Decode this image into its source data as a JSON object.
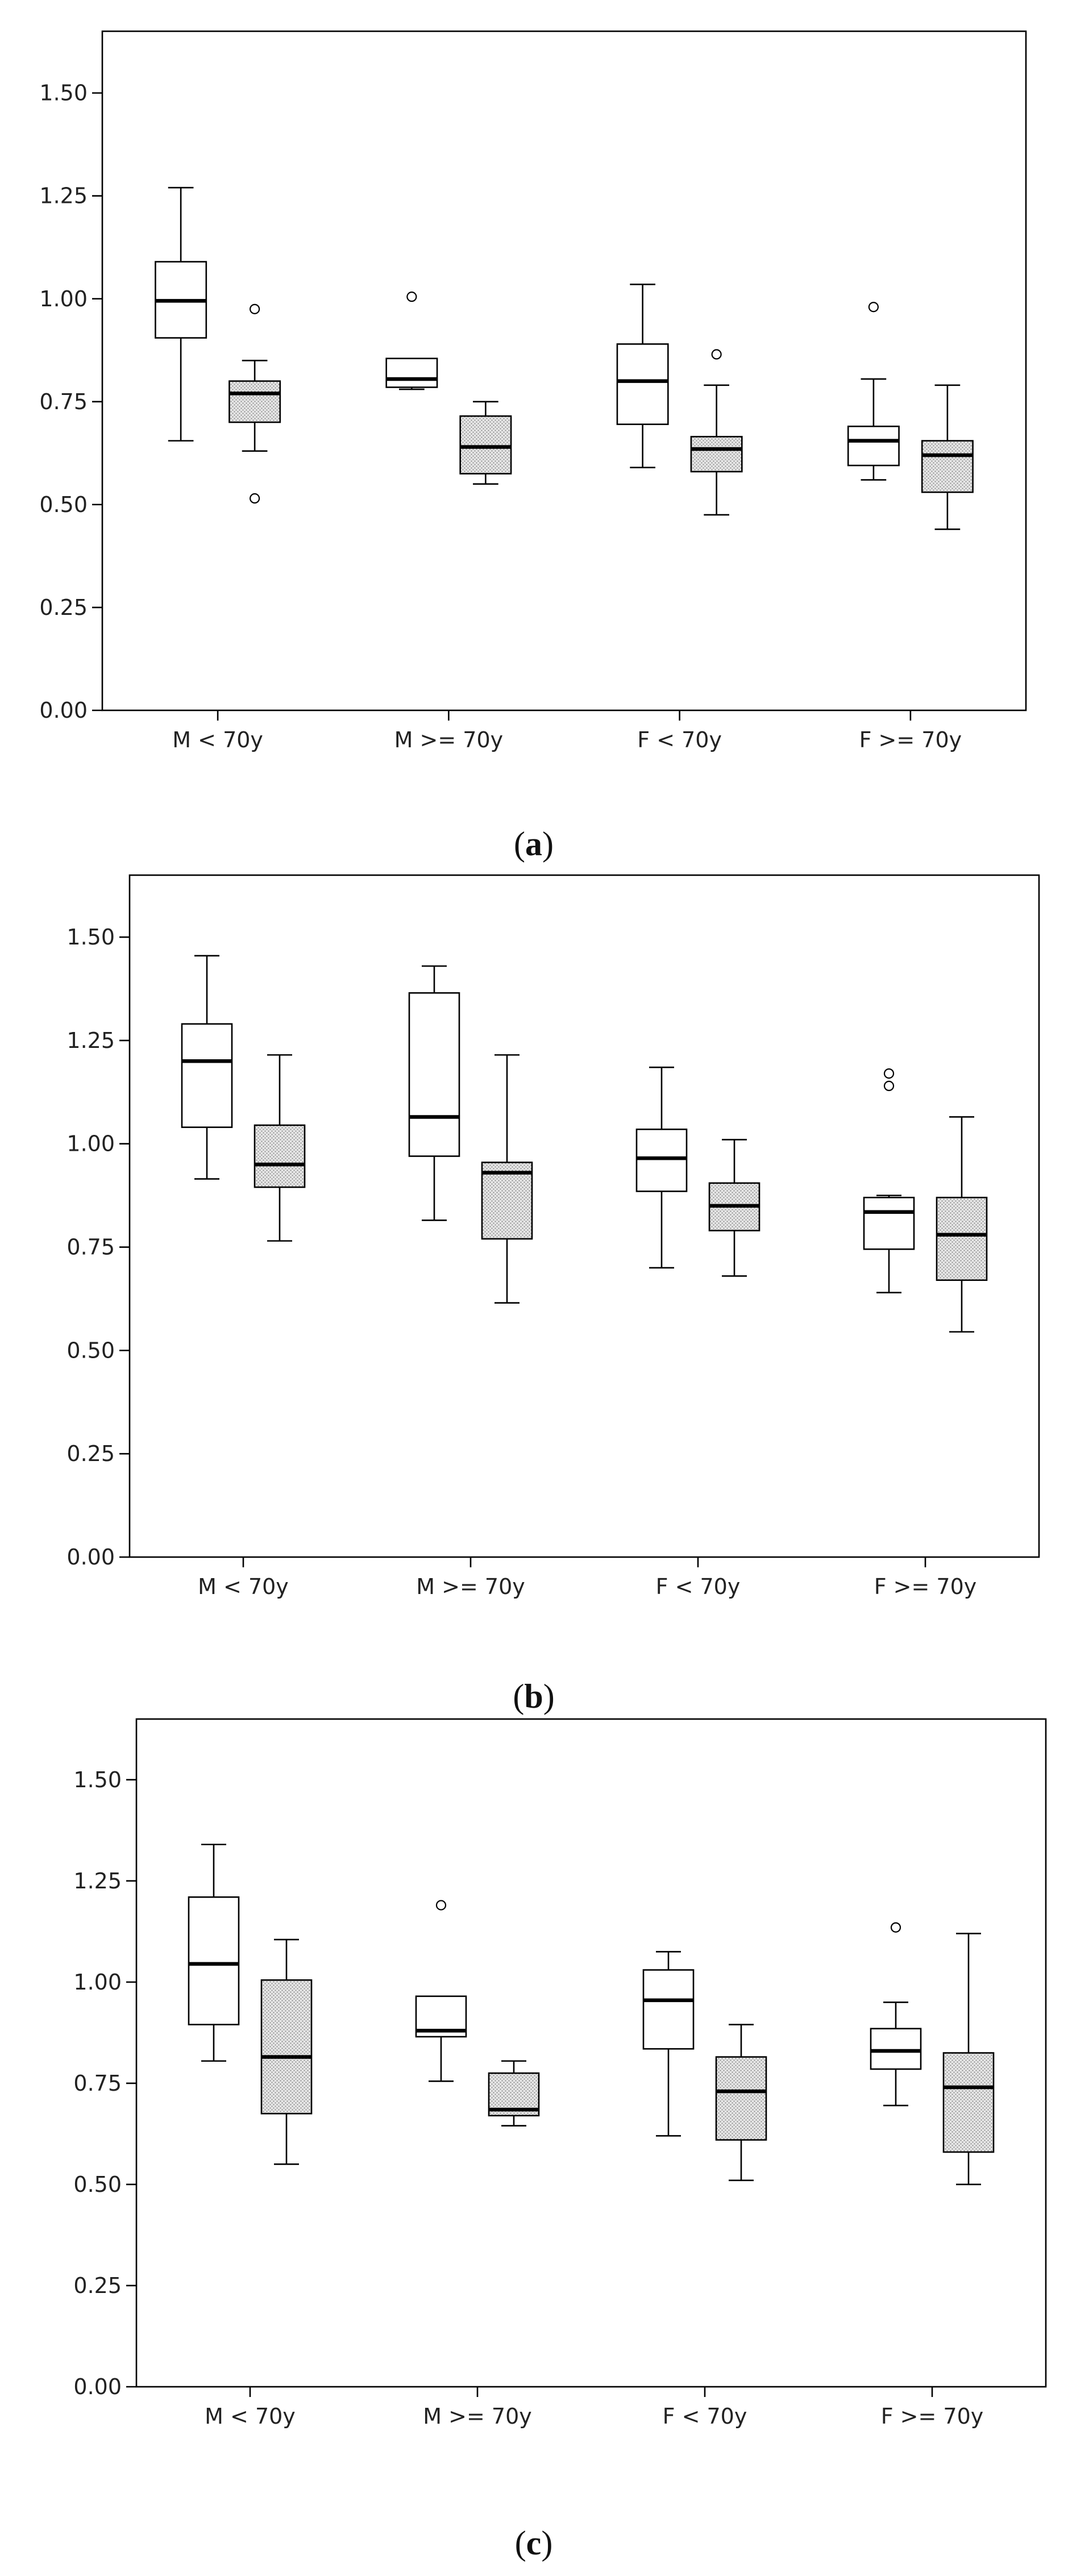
{
  "chart_data": [
    {
      "panel": "a",
      "type": "box",
      "categories": [
        "M < 70y",
        "M >= 70y",
        "F < 70y",
        "F >= 70y"
      ],
      "ylim": [
        0,
        1.65
      ],
      "yticks": [
        "0.00",
        "0.25",
        "0.50",
        "0.75",
        "1.00",
        "1.25",
        "1.50"
      ],
      "grid": false,
      "series": [
        {
          "fill": "white",
          "boxes": [
            {
              "min": 0.655,
              "q1": 0.905,
              "median": 0.995,
              "q3": 1.09,
              "max": 1.27,
              "outliers": []
            },
            {
              "min": 0.78,
              "q1": 0.785,
              "median": 0.805,
              "q3": 0.855,
              "max": 0.855,
              "outliers": [
                1.005
              ]
            },
            {
              "min": 0.59,
              "q1": 0.695,
              "median": 0.8,
              "q3": 0.89,
              "max": 1.035,
              "outliers": []
            },
            {
              "min": 0.56,
              "q1": 0.595,
              "median": 0.655,
              "q3": 0.69,
              "max": 0.805,
              "outliers": [
                0.98
              ]
            }
          ]
        },
        {
          "fill": "stippled",
          "boxes": [
            {
              "min": 0.63,
              "q1": 0.7,
              "median": 0.77,
              "q3": 0.8,
              "max": 0.85,
              "outliers": [
                0.975,
                0.515
              ]
            },
            {
              "min": 0.55,
              "q1": 0.575,
              "median": 0.64,
              "q3": 0.715,
              "max": 0.75,
              "outliers": []
            },
            {
              "min": 0.475,
              "q1": 0.58,
              "median": 0.635,
              "q3": 0.665,
              "max": 0.79,
              "outliers": [
                0.865
              ]
            },
            {
              "min": 0.44,
              "q1": 0.53,
              "median": 0.62,
              "q3": 0.655,
              "max": 0.79,
              "outliers": []
            }
          ]
        }
      ]
    },
    {
      "panel": "b",
      "type": "box",
      "categories": [
        "M < 70y",
        "M >= 70y",
        "F < 70y",
        "F >= 70y"
      ],
      "ylim": [
        0,
        1.65
      ],
      "yticks": [
        "0.00",
        "0.25",
        "0.50",
        "0.75",
        "1.00",
        "1.25",
        "1.50"
      ],
      "grid": false,
      "series": [
        {
          "fill": "white",
          "boxes": [
            {
              "min": 0.915,
              "q1": 1.04,
              "median": 1.2,
              "q3": 1.29,
              "max": 1.455,
              "outliers": []
            },
            {
              "min": 0.815,
              "q1": 0.97,
              "median": 1.065,
              "q3": 1.365,
              "max": 1.43,
              "outliers": []
            },
            {
              "min": 0.7,
              "q1": 0.885,
              "median": 0.965,
              "q3": 1.035,
              "max": 1.185,
              "outliers": []
            },
            {
              "min": 0.64,
              "q1": 0.745,
              "median": 0.835,
              "q3": 0.87,
              "max": 0.875,
              "outliers": [
                1.17,
                1.14
              ]
            }
          ]
        },
        {
          "fill": "stippled",
          "boxes": [
            {
              "min": 0.765,
              "q1": 0.895,
              "median": 0.95,
              "q3": 1.045,
              "max": 1.215,
              "outliers": []
            },
            {
              "min": 0.615,
              "q1": 0.77,
              "median": 0.93,
              "q3": 0.955,
              "max": 1.215,
              "outliers": []
            },
            {
              "min": 0.68,
              "q1": 0.79,
              "median": 0.85,
              "q3": 0.905,
              "max": 1.01,
              "outliers": []
            },
            {
              "min": 0.545,
              "q1": 0.67,
              "median": 0.78,
              "q3": 0.87,
              "max": 1.065,
              "outliers": []
            }
          ]
        }
      ]
    },
    {
      "panel": "c",
      "type": "box",
      "categories": [
        "M < 70y",
        "M >= 70y",
        "F < 70y",
        "F >= 70y"
      ],
      "ylim": [
        0,
        1.65
      ],
      "yticks": [
        "0.00",
        "0.25",
        "0.50",
        "0.75",
        "1.00",
        "1.25",
        "1.50"
      ],
      "grid": false,
      "series": [
        {
          "fill": "white",
          "boxes": [
            {
              "min": 0.805,
              "q1": 0.895,
              "median": 1.045,
              "q3": 1.21,
              "max": 1.34,
              "outliers": []
            },
            {
              "min": 0.755,
              "q1": 0.865,
              "median": 0.88,
              "q3": 0.965,
              "max": 0.965,
              "outliers": [
                1.19
              ]
            },
            {
              "min": 0.62,
              "q1": 0.835,
              "median": 0.955,
              "q3": 1.03,
              "max": 1.075,
              "outliers": []
            },
            {
              "min": 0.695,
              "q1": 0.785,
              "median": 0.83,
              "q3": 0.885,
              "max": 0.95,
              "outliers": [
                1.135
              ]
            }
          ]
        },
        {
          "fill": "stippled",
          "boxes": [
            {
              "min": 0.55,
              "q1": 0.675,
              "median": 0.815,
              "q3": 1.005,
              "max": 1.105,
              "outliers": []
            },
            {
              "min": 0.645,
              "q1": 0.67,
              "median": 0.685,
              "q3": 0.775,
              "max": 0.805,
              "outliers": []
            },
            {
              "min": 0.51,
              "q1": 0.61,
              "median": 0.73,
              "q3": 0.815,
              "max": 0.895,
              "outliers": []
            },
            {
              "min": 0.5,
              "q1": 0.58,
              "median": 0.74,
              "q3": 0.825,
              "max": 1.12,
              "outliers": []
            }
          ]
        }
      ]
    }
  ],
  "colors": {
    "stroke": "#000000",
    "box_white": "#ffffff",
    "stipple_dot": "#8a8a8a"
  }
}
